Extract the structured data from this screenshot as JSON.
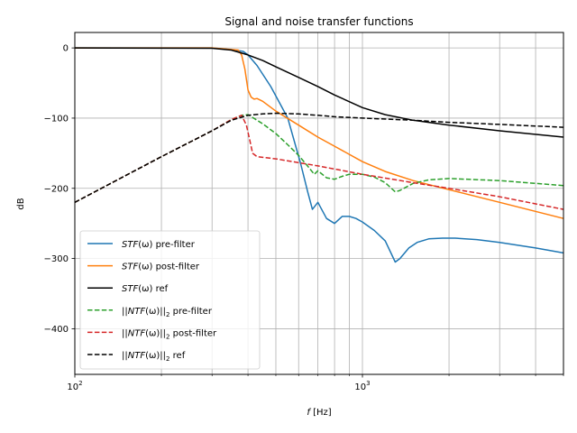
{
  "chart_data": {
    "type": "line",
    "title": "Signal and noise transfer functions",
    "xlabel": "f [Hz]",
    "ylabel": "dB",
    "xscale": "log",
    "xlim": [
      100,
      5000
    ],
    "ylim": [
      -465,
      22
    ],
    "grid": true,
    "legend_position": "lower-left",
    "x_ticks": [
      {
        "value": 100,
        "base": "10",
        "exp": "2"
      },
      {
        "value": 1000,
        "base": "10",
        "exp": "3"
      }
    ],
    "y_ticks": [
      {
        "value": 0,
        "label": "0"
      },
      {
        "value": -100,
        "label": "−100"
      },
      {
        "value": -200,
        "label": "−200"
      },
      {
        "value": -300,
        "label": "−300"
      },
      {
        "value": -400,
        "label": "−400"
      }
    ],
    "series": [
      {
        "name": "STF(ω) pre-filter",
        "color": "#1f77b4",
        "dash": "solid",
        "x": [
          100,
          300,
          360,
          385,
          400,
          430,
          480,
          550,
          610,
          645,
          670,
          700,
          750,
          800,
          850,
          900,
          950,
          1000,
          1100,
          1200,
          1300,
          1350,
          1450,
          1550,
          1700,
          1900,
          2100,
          2500,
          3000,
          4000,
          5000
        ],
        "y": [
          0,
          0,
          -3,
          -5,
          -10,
          -25,
          -55,
          -100,
          -165,
          -205,
          -230,
          -220,
          -243,
          -250,
          -240,
          -240,
          -243,
          -248,
          -260,
          -275,
          -305,
          -300,
          -285,
          -277,
          -272,
          -271,
          -271,
          -273,
          -277,
          -285,
          -292
        ]
      },
      {
        "name": "STF(ω) post-filter",
        "color": "#ff7f0e",
        "dash": "solid",
        "x": [
          100,
          300,
          370,
          380,
          390,
          400,
          410,
          420,
          430,
          450,
          500,
          600,
          700,
          800,
          1000,
          1200,
          1500,
          2000,
          3000,
          5000
        ],
        "y": [
          0,
          0,
          -3,
          -10,
          -30,
          -60,
          -70,
          -73,
          -72,
          -76,
          -90,
          -110,
          -127,
          -140,
          -162,
          -176,
          -189,
          -202,
          -220,
          -243
        ]
      },
      {
        "name": "STF(ω) ref",
        "color": "#000000",
        "dash": "solid",
        "x": [
          100,
          300,
          350,
          400,
          450,
          500,
          600,
          700,
          800,
          1000,
          1200,
          1500,
          2000,
          3000,
          5000
        ],
        "y": [
          0,
          -0.5,
          -3,
          -10,
          -18,
          -27,
          -42,
          -55,
          -67,
          -85,
          -95,
          -103,
          -110,
          -118,
          -127
        ]
      },
      {
        "name": "||NTF(ω)||₂ pre-filter",
        "color": "#2ca02c",
        "dash": "dashed",
        "x": [
          100,
          200,
          300,
          350,
          380,
          400,
          450,
          500,
          550,
          600,
          650,
          680,
          700,
          750,
          800,
          850,
          900,
          1000,
          1100,
          1200,
          1300,
          1350,
          1500,
          1700,
          2000,
          3000,
          5000
        ],
        "y": [
          -220,
          -155,
          -118,
          -102,
          -96,
          -95,
          -108,
          -122,
          -138,
          -153,
          -170,
          -180,
          -175,
          -185,
          -187,
          -183,
          -180,
          -180,
          -184,
          -192,
          -205,
          -203,
          -193,
          -188,
          -186,
          -189,
          -196
        ]
      },
      {
        "name": "||NTF(ω)||₂ post-filter",
        "color": "#d62728",
        "dash": "dashed",
        "x": [
          100,
          200,
          300,
          350,
          380,
          395,
          405,
          415,
          430,
          500,
          700,
          1000,
          1500,
          2000,
          3000,
          5000
        ],
        "y": [
          -220,
          -155,
          -118,
          -102,
          -96,
          -110,
          -130,
          -150,
          -155,
          -158,
          -168,
          -180,
          -192,
          -200,
          -212,
          -230
        ]
      },
      {
        "name": "||NTF(ω)||₂ ref",
        "color": "#000000",
        "dash": "dashed",
        "x": [
          100,
          200,
          300,
          350,
          400,
          450,
          500,
          600,
          700,
          800,
          1000,
          1500,
          2000,
          3000,
          5000
        ],
        "y": [
          -220,
          -155,
          -118,
          -103,
          -96,
          -94,
          -93,
          -94,
          -96,
          -98,
          -100,
          -103,
          -106,
          -109,
          -113
        ]
      }
    ],
    "legend": [
      {
        "italic": "STF",
        "rest": "(ω) pre-filter",
        "norm": false
      },
      {
        "italic": "STF",
        "rest": "(ω) post-filter",
        "norm": false
      },
      {
        "italic": "STF",
        "rest": "(ω) ref",
        "norm": false
      },
      {
        "italic": "NTF",
        "rest": " pre-filter",
        "norm": true
      },
      {
        "italic": "NTF",
        "rest": " post-filter",
        "norm": true
      },
      {
        "italic": "NTF",
        "rest": " ref",
        "norm": true
      }
    ]
  }
}
